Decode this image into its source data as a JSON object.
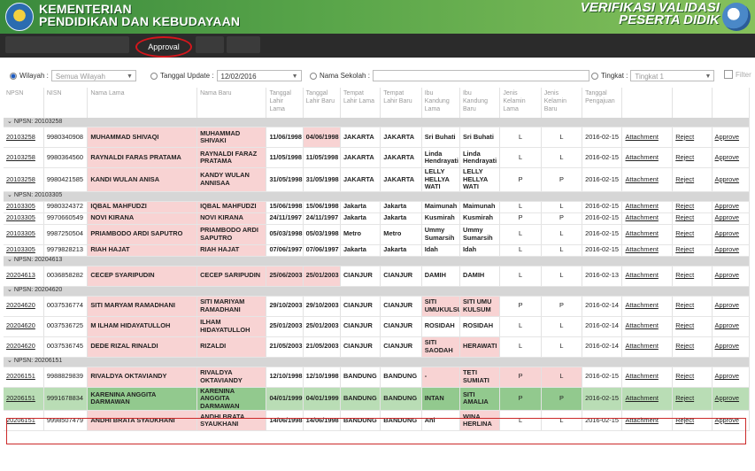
{
  "header": {
    "ministry_line1": "KEMENTERIAN",
    "ministry_line2": "PENDIDIKAN DAN KEBUDAYAAN",
    "app_line1": "VERIFIKASI VALIDASI",
    "app_line2": "PESERTA DIDIK"
  },
  "nav": {
    "approval": "Approval"
  },
  "filters": {
    "wilayah_label": "Wilayah :",
    "wilayah_value": "Semua Wilayah",
    "tanggal_label": "Tanggal Update :",
    "tanggal_value": "12/02/2016",
    "sekolah_label": "Nama Sekolah :",
    "sekolah_value": "",
    "tingkat_label": "Tingkat :",
    "tingkat_value": "Tingkat 1",
    "filter_label": "Filter"
  },
  "columns": [
    "NPSN",
    "NISN",
    "Nama Lama",
    "Nama Baru",
    "Tanggal Lahir Lama",
    "Tanggal Lahir Baru",
    "Tempat Lahir Lama",
    "Tempat Lahir Baru",
    "Ibu Kandung Lama",
    "Ibu Kandung Baru",
    "Jenis Kelamin Lama",
    "Jenis Kelamin Baru",
    "Tanggal Pengajuan",
    "",
    "",
    ""
  ],
  "groups": [
    {
      "label": "NPSN: 20103258",
      "rows": [
        [
          "20103258",
          "9980340908",
          "MUHAMMAD SHIVAQI",
          "MUHAMMAD SHIVAKI",
          "11/06/1998",
          "04/06/1998",
          "JAKARTA",
          "JAKARTA",
          "Sri Buhati",
          "Sri Buhati",
          "L",
          "L",
          "2016-02-15",
          "Attachment",
          "Reject",
          "Approve"
        ],
        [
          "20103258",
          "9980364560",
          "RAYNALDI FARAS PRATAMA",
          "RAYNALDI FARAZ PRATAMA",
          "11/05/1998",
          "11/05/1998",
          "JAKARTA",
          "JAKARTA",
          "Linda Hendrayati",
          "Linda Hendrayati",
          "L",
          "L",
          "2016-02-15",
          "Attachment",
          "Reject",
          "Approve"
        ],
        [
          "20103258",
          "9980421585",
          "KANDI WULAN ANISA",
          "KANDY WULAN ANNISAA",
          "31/05/1998",
          "31/05/1998",
          "JAKARTA",
          "JAKARTA",
          "LELLY HELLYA WATI",
          "LELLY HELLYA WATI",
          "P",
          "P",
          "2016-02-15",
          "Attachment",
          "Reject",
          "Approve"
        ]
      ]
    },
    {
      "label": "NPSN: 20103305",
      "rows": [
        [
          "20103305",
          "9980324372",
          "IQBAL MAHFUDZI",
          "IQBAL MAHFUDZI",
          "15/06/1998",
          "15/06/1998",
          "Jakarta",
          "Jakarta",
          "Maimunah",
          "Maimunah",
          "L",
          "L",
          "2016-02-15",
          "Attachment",
          "Reject",
          "Approve"
        ],
        [
          "20103305",
          "9970660549",
          "NOVI KIRANA",
          "NOVI KIRANA",
          "24/11/1997",
          "24/11/1997",
          "Jakarta",
          "Jakarta",
          "Kusmirah",
          "Kusmirah",
          "P",
          "P",
          "2016-02-15",
          "Attachment",
          "Reject",
          "Approve"
        ],
        [
          "20103305",
          "9987250504",
          "PRIAMBODO ARDI SAPUTRO",
          "PRIAMBODO ARDI SAPUTRO",
          "05/03/1998",
          "05/03/1998",
          "Metro",
          "Metro",
          "Ummy Sumarsih",
          "Ummy Sumarsih",
          "L",
          "L",
          "2016-02-15",
          "Attachment",
          "Reject",
          "Approve"
        ],
        [
          "20103305",
          "9979828213",
          "RIAH HAJAT",
          "RIAH HAJAT",
          "07/06/1997",
          "07/06/1997",
          "Jakarta",
          "Jakarta",
          "Idah",
          "Idah",
          "L",
          "L",
          "2016-02-15",
          "Attachment",
          "Reject",
          "Approve"
        ]
      ]
    },
    {
      "label": "NPSN: 20204613",
      "rows": [
        [
          "20204613",
          "0036858282",
          "CECEP SYARIPUDIN",
          "CECEP SARIPUDIN",
          "25/06/2003",
          "25/01/2003",
          "CIANJUR",
          "CIANJUR",
          "DAMIH",
          "DAMIH",
          "L",
          "L",
          "2016-02-13",
          "Attachment",
          "Reject",
          "Approve"
        ]
      ]
    },
    {
      "label": "NPSN: 20204620",
      "rows": [
        [
          "20204620",
          "0037536774",
          "SITI MARYAM RAMADHANI",
          "SITI MARIYAM RAMADHANI",
          "29/10/2003",
          "29/10/2003",
          "CIANJUR",
          "CIANJUR",
          "SITI UMUKULSUM",
          "SITI UMU KULSUM",
          "P",
          "P",
          "2016-02-14",
          "Attachment",
          "Reject",
          "Approve"
        ],
        [
          "20204620",
          "0037536725",
          "M ILHAM HIDAYATULLOH",
          "ILHAM HIDAYATULLOH",
          "25/01/2003",
          "25/01/2003",
          "CIANJUR",
          "CIANJUR",
          "ROSIDAH",
          "ROSIDAH",
          "L",
          "L",
          "2016-02-14",
          "Attachment",
          "Reject",
          "Approve"
        ],
        [
          "20204620",
          "0037536745",
          "DEDE RIZAL RINALDI",
          "RIZALDI",
          "21/05/2003",
          "21/05/2003",
          "CIANJUR",
          "CIANJUR",
          "SITI SAODAH",
          "HERAWATI",
          "L",
          "L",
          "2016-02-14",
          "Attachment",
          "Reject",
          "Approve"
        ]
      ]
    },
    {
      "label": "NPSN: 20206151",
      "rows": [
        [
          "20206151",
          "9988829839",
          "RIVALDYA OKTAVIANDY",
          "RIVALDYA OKTAVIANDY",
          "12/10/1998",
          "12/10/1998",
          "BANDUNG",
          "BANDUNG",
          "-",
          "TETI SUMIATI",
          "P",
          "L",
          "2016-02-15",
          "Attachment",
          "Reject",
          "Approve"
        ],
        [
          "20206151",
          "9991678834",
          "KARENINA ANGGITA DARMAWAN",
          "KARENINA ANGGITA DARMAWAN",
          "04/01/1999",
          "04/01/1999",
          "BANDUNG",
          "BANDUNG",
          "INTAN",
          "SITI AMALIA",
          "P",
          "P",
          "2016-02-15",
          "Attachment",
          "Reject",
          "Approve"
        ],
        [
          "20206151",
          "9998507479",
          "ANDHI BRATA SYAUKHANI",
          "ANDHI BRATA SYAUKHANI",
          "14/06/1998",
          "14/06/1998",
          "BANDUNG",
          "BANDUNG",
          "Ani",
          "WINA HERLINA",
          "L",
          "L",
          "2016-02-15",
          "Attachment",
          "Reject",
          "Approve"
        ]
      ]
    }
  ]
}
